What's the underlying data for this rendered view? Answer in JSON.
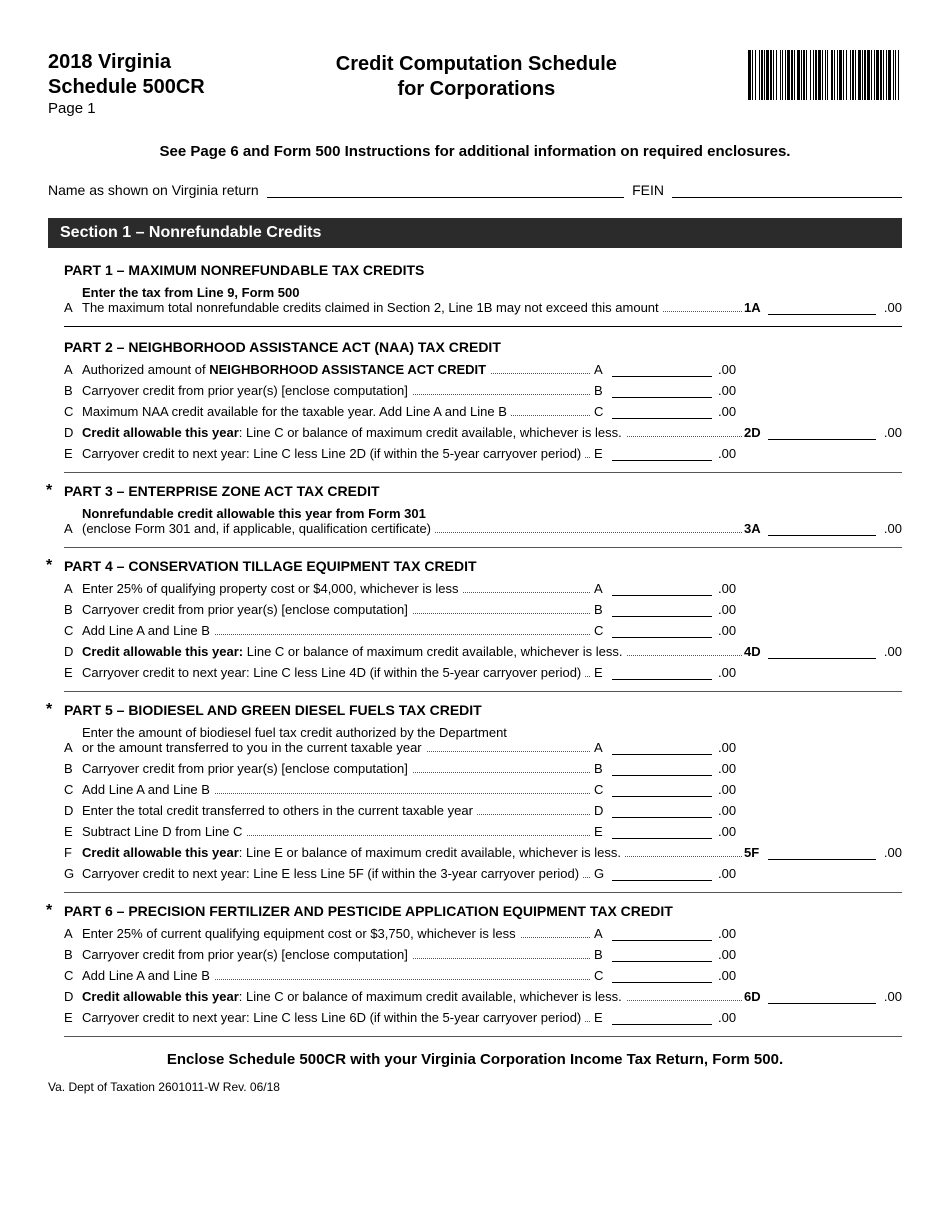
{
  "header": {
    "year_state": "2018 Virginia",
    "schedule": "Schedule 500CR",
    "page": "Page 1",
    "title_line1": "Credit Computation Schedule",
    "title_line2": "for Corporations"
  },
  "top_instruction": "See Page 6 and Form 500 Instructions for additional information on required enclosures.",
  "fields": {
    "name_label": "Name as shown on Virginia return",
    "fein_label": "FEIN"
  },
  "section1_title": "Section 1 – Nonrefundable Credits",
  "suffix": ".00",
  "parts": {
    "p1": {
      "title": "PART 1 – MAXIMUM NONREFUNDABLE TAX CREDITS",
      "star": false,
      "rows": [
        {
          "letter": "A",
          "bold": true,
          "text1": "Enter the tax from Line 9, Form 500",
          "text2": "The maximum total nonrefundable credits claimed in Section 2, Line 1B may not exceed this amount",
          "right_label": "1A",
          "right": true
        }
      ]
    },
    "p2": {
      "title": "PART 2 – NEIGHBORHOOD ASSISTANCE ACT (NAA) TAX CREDIT",
      "star": false,
      "rows": [
        {
          "letter": "A",
          "text": "Authorized amount of <b>NEIGHBORHOOD ASSISTANCE ACT CREDIT</b>",
          "mid_label": "A",
          "mid": true
        },
        {
          "letter": "B",
          "text": "Carryover credit from prior year(s) [enclose computation]",
          "mid_label": "B",
          "mid": true
        },
        {
          "letter": "C",
          "text": "Maximum NAA credit available for the taxable year. Add Line A and Line B",
          "mid_label": "C",
          "mid": true
        },
        {
          "letter": "D",
          "bold": true,
          "text": "<b>Credit allowable this year</b>: Line C or balance of maximum credit available, whichever is less.",
          "right_label": "2D",
          "right": true
        },
        {
          "letter": "E",
          "text": "Carryover credit to next year: Line C less Line 2D (if within the 5-year carryover period)",
          "mid_label": "E",
          "mid": true
        }
      ]
    },
    "p3": {
      "title": "PART 3 – ENTERPRISE ZONE ACT TAX CREDIT",
      "star": true,
      "rows": [
        {
          "letter": "A",
          "bold": true,
          "text1": "Nonrefundable credit allowable this year from Form 301",
          "text2": "(enclose Form 301 and, if applicable, qualification certificate)",
          "right_label": "3A",
          "right": true
        }
      ]
    },
    "p4": {
      "title": "PART 4 – CONSERVATION TILLAGE EQUIPMENT TAX CREDIT",
      "star": true,
      "rows": [
        {
          "letter": "A",
          "text": "Enter 25% of qualifying property cost or $4,000, whichever is less",
          "mid_label": "A",
          "mid": true
        },
        {
          "letter": "B",
          "text": "Carryover credit from prior year(s) [enclose computation]",
          "mid_label": "B",
          "mid": true
        },
        {
          "letter": "C",
          "text": "Add Line A and Line B",
          "mid_label": "C",
          "mid": true
        },
        {
          "letter": "D",
          "text": "<b>Credit allowable this year:</b> Line C or balance of maximum credit available, whichever is less.",
          "right_label": "4D",
          "right": true
        },
        {
          "letter": "E",
          "text": "Carryover credit to next year: Line C less Line 4D (if within the 5-year carryover period)",
          "mid_label": "E",
          "mid": true
        }
      ]
    },
    "p5": {
      "title": "PART 5 – BIODIESEL AND GREEN DIESEL FUELS TAX CREDIT",
      "star": true,
      "rows": [
        {
          "letter": "A",
          "text1": "Enter the amount of biodiesel fuel tax credit authorized by the Department",
          "text2": "or the amount transferred to you in the current taxable year",
          "mid_label": "A",
          "mid": true
        },
        {
          "letter": "B",
          "text": "Carryover credit from prior year(s) [enclose computation]",
          "mid_label": "B",
          "mid": true
        },
        {
          "letter": "C",
          "text": "Add Line A and Line B",
          "mid_label": "C",
          "mid": true
        },
        {
          "letter": "D",
          "text": "Enter the total credit transferred to others in the current taxable year",
          "mid_label": "D",
          "mid": true
        },
        {
          "letter": "E",
          "text": "Subtract Line D from Line C",
          "mid_label": "E",
          "mid": true
        },
        {
          "letter": "F",
          "text": "<b>Credit allowable this year</b>: Line E or balance of maximum credit available, whichever is less.",
          "right_label": "5F",
          "right": true
        },
        {
          "letter": "G",
          "text": "Carryover credit to next year: Line E less Line 5F (if within the 3-year carryover period)",
          "mid_label": "G",
          "mid": true
        }
      ]
    },
    "p6": {
      "title": "PART 6 – PRECISION FERTILIZER AND PESTICIDE APPLICATION EQUIPMENT TAX CREDIT",
      "star": true,
      "rows": [
        {
          "letter": "A",
          "text": "Enter 25% of current qualifying equipment cost or $3,750, whichever is less",
          "mid_label": "A",
          "mid": true
        },
        {
          "letter": "B",
          "text": "Carryover credit from prior year(s) [enclose computation]",
          "mid_label": "B",
          "mid": true
        },
        {
          "letter": "C",
          "text": "Add Line A and Line B",
          "mid_label": "C",
          "mid": true
        },
        {
          "letter": "D",
          "text": "<b>Credit allowable this year</b>: Line C or balance of maximum credit available, whichever is less.",
          "right_label": "6D",
          "right": true
        },
        {
          "letter": "E",
          "text": "Carryover credit to next year: Line C less Line 6D (if within the 5-year carryover period)",
          "mid_label": "E",
          "mid": true
        }
      ]
    }
  },
  "footer_instruction": "Enclose Schedule 500CR with your Virginia Corporation Income Tax Return, Form 500.",
  "footer_small": "Va. Dept of Taxation   2601011-W   Rev. 06/18"
}
